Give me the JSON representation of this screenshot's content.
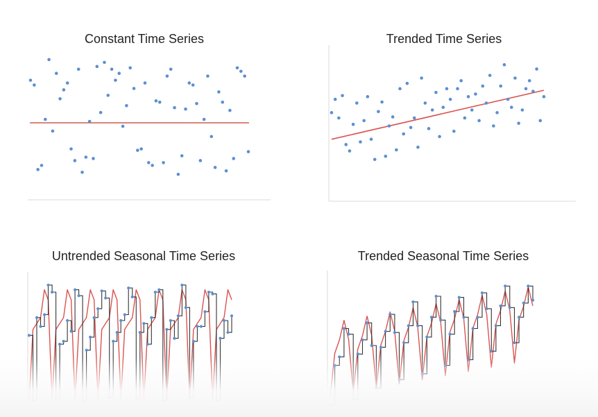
{
  "colors": {
    "points": "#5b8fd1",
    "fit": "#d9534f"
  },
  "chart_data": [
    {
      "type": "scatter",
      "title": "Constant Time Series",
      "xlabel": "",
      "ylabel": "",
      "grid": false,
      "x": [
        1,
        2,
        3,
        4,
        5,
        6,
        7,
        8,
        9,
        10,
        11,
        12,
        13,
        14,
        15,
        16,
        17,
        18,
        19,
        20,
        21,
        22,
        23,
        24,
        25,
        26,
        27,
        28,
        29,
        30,
        31,
        32,
        33,
        34,
        35,
        36,
        37,
        38,
        39,
        40,
        41,
        42,
        43,
        44,
        45,
        46,
        47,
        48,
        49,
        50,
        51,
        52,
        53,
        54,
        55,
        56,
        57,
        58,
        59,
        60
      ],
      "y": [
        0.62,
        0.55,
        -0.68,
        -0.62,
        0.05,
        0.92,
        -0.12,
        0.72,
        0.35,
        0.48,
        0.58,
        -0.38,
        -0.55,
        0.78,
        -0.72,
        -0.5,
        0.02,
        -0.52,
        0.82,
        0.15,
        0.88,
        0.4,
        0.78,
        0.62,
        0.72,
        -0.05,
        0.25,
        0.8,
        0.5,
        -0.4,
        -0.38,
        0.58,
        -0.58,
        -0.62,
        0.32,
        0.3,
        -0.58,
        0.68,
        0.78,
        0.22,
        -0.75,
        -0.48,
        0.2,
        0.58,
        0.55,
        0.28,
        -0.55,
        0.05,
        0.68,
        -0.2,
        -0.65,
        0.45,
        0.3,
        -0.7,
        0.18,
        -0.52,
        0.8,
        0.75,
        0.68,
        -0.42
      ],
      "fit": {
        "type": "constant",
        "value": 0.0
      },
      "ylim": [
        -1,
        1
      ]
    },
    {
      "type": "scatter",
      "title": "Trended Time Series",
      "xlabel": "",
      "ylabel": "",
      "grid": false,
      "x": [
        1,
        2,
        3,
        4,
        5,
        6,
        7,
        8,
        9,
        10,
        11,
        12,
        13,
        14,
        15,
        16,
        17,
        18,
        19,
        20,
        21,
        22,
        23,
        24,
        25,
        26,
        27,
        28,
        29,
        30,
        31,
        32,
        33,
        34,
        35,
        36,
        37,
        38,
        39,
        40,
        41,
        42,
        43,
        44,
        45,
        46,
        47,
        48,
        49,
        50,
        51,
        52,
        53,
        54,
        55,
        56,
        57,
        58,
        59,
        60
      ],
      "y": [
        0.1,
        0.35,
        0.0,
        0.42,
        -0.5,
        -0.62,
        -0.12,
        0.28,
        -0.45,
        -0.05,
        0.4,
        -0.4,
        -0.78,
        0.12,
        0.3,
        -0.72,
        -0.15,
        0.02,
        -0.6,
        0.55,
        -0.3,
        0.65,
        -0.18,
        0.0,
        -0.55,
        0.75,
        0.28,
        -0.2,
        0.15,
        0.48,
        -0.35,
        0.2,
        0.55,
        0.35,
        -0.25,
        0.55,
        0.7,
        0.0,
        0.4,
        0.15,
        0.45,
        -0.05,
        0.6,
        0.28,
        0.8,
        -0.15,
        0.1,
        0.6,
        1.0,
        0.35,
        0.2,
        0.75,
        -0.1,
        0.15,
        0.55,
        0.7,
        0.5,
        0.92,
        -0.05,
        0.4
      ],
      "fit": {
        "type": "linear",
        "start": -0.4,
        "end": 0.52
      },
      "ylim": [
        -1.2,
        1.2
      ]
    },
    {
      "type": "line",
      "title": "Untrended Seasonal Time Series",
      "xlabel": "",
      "ylabel": "",
      "grid": false,
      "series_points": [
        0.15,
        -0.95,
        0.45,
        0.3,
        0.5,
        1.0,
        0.88,
        -0.92,
        0.0,
        0.05,
        0.4,
        0.22,
        0.92,
        0.82,
        -0.96,
        -0.1,
        0.12,
        0.45,
        0.6,
        0.9,
        0.78,
        -0.9,
        0.05,
        0.2,
        0.4,
        0.5,
        0.95,
        0.8,
        -0.92,
        0.2,
        0.35,
        0.0,
        0.45,
        0.88,
        0.92,
        -0.95,
        0.25,
        0.4,
        0.1,
        0.48,
        1.0,
        0.62,
        -0.9,
        0.05,
        0.3,
        0.3,
        0.55,
        0.88,
        0.85,
        -0.95,
        0.1,
        0.4,
        0.2,
        0.48
      ],
      "seasonal_fit": {
        "period": 6,
        "shape": [
          -0.96,
          0.25,
          0.35,
          0.45,
          0.92,
          0.75
        ]
      },
      "ylim": [
        -1.1,
        1.15
      ]
    },
    {
      "type": "line",
      "title": "Trended Seasonal Time Series",
      "xlabel": "",
      "ylabel": "",
      "grid": false,
      "series_points": [
        -1.0,
        -0.3,
        -0.15,
        0.35,
        0.25,
        -0.9,
        -0.1,
        0.15,
        0.45,
        0.05,
        -0.7,
        0.02,
        0.3,
        0.6,
        0.28,
        -0.55,
        0.1,
        0.4,
        0.82,
        0.4,
        -0.45,
        0.2,
        0.55,
        0.92,
        0.5,
        -0.3,
        0.25,
        0.65,
        0.9,
        0.55,
        -0.2,
        0.35,
        0.55,
        0.98,
        0.7,
        -0.05,
        0.4,
        0.75,
        1.1,
        0.72,
        0.1,
        0.55,
        0.8,
        1.1,
        0.85
      ],
      "seasonal_fit": {
        "period": 5,
        "shape": [
          -0.75,
          0.0,
          0.22,
          0.55,
          0.2
        ],
        "trend_start": -0.1,
        "trend_end": 0.55
      },
      "ylim": [
        -1.15,
        1.25
      ]
    }
  ]
}
